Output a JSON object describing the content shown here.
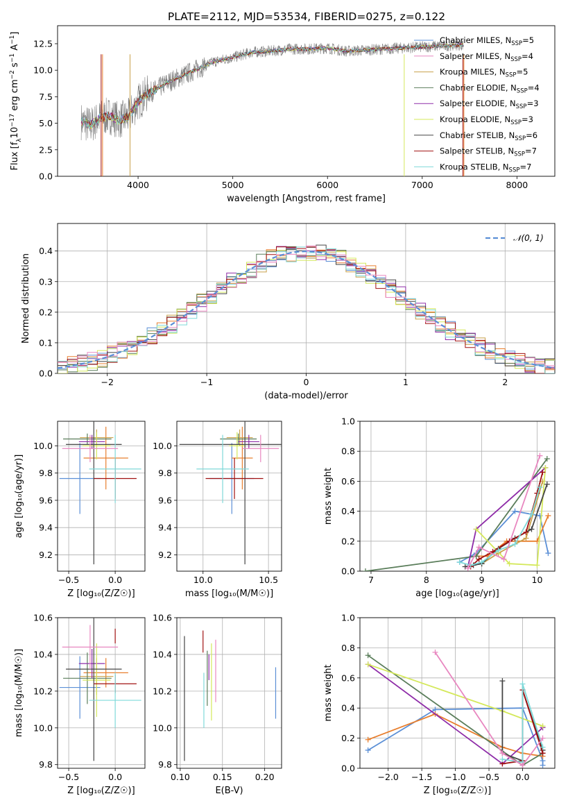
{
  "figure": {
    "title": "PLATE=2112, MJD=53534, FIBERID=0275, z=0.122"
  },
  "palette": {
    "Chabrier MILES": "#5b8fd6",
    "Salpeter MILES": "#e87f2e",
    "Kroupa MILES": "#c8a04a",
    "Chabrier ELODIE": "#5a7d5a",
    "Salpeter ELODIE": "#8e2ca8",
    "Kroupa ELODIE": "#d4e85a",
    "Chabrier STELIB": "#444444",
    "Salpeter STELIB": "#a01010",
    "Kroupa STELIB": "#7fd9d9",
    "Salpeter MILES line": "#e887c0",
    "data": "#808080",
    "normal": "#5b8fd6",
    "grid": "#b0b0b0"
  },
  "chart_data": [
    {
      "id": "spectrum",
      "type": "line",
      "xlabel": "wavelength [Angstrom, rest frame]",
      "ylabel": "Flux [f_λ10^{-17} erg cm^{-2} s^{-1} A^{-1}]",
      "xlim": [
        3150,
        8400
      ],
      "ylim": [
        0,
        14.2
      ],
      "xticks": [
        4000,
        5000,
        6000,
        7000,
        8000
      ],
      "yticks": [
        0.0,
        2.5,
        5.0,
        7.5,
        10.0,
        12.5
      ],
      "grid": false,
      "legend_position": "top-right",
      "continuum": {
        "x": [
          3400,
          3500,
          3600,
          3700,
          3800,
          3900,
          4000,
          4100,
          4200,
          4300,
          4400,
          4600,
          4800,
          5000,
          5200,
          5400,
          5600,
          5800,
          6000,
          6200,
          6400,
          6600,
          6800,
          7000,
          7200,
          7400
        ],
        "y": [
          5.2,
          4.8,
          5.5,
          5.7,
          5.3,
          5.6,
          7.0,
          7.8,
          8.2,
          8.8,
          9.2,
          10.0,
          10.8,
          11.2,
          11.7,
          11.8,
          12.0,
          12.0,
          12.1,
          11.8,
          11.9,
          12.0,
          12.1,
          12.2,
          12.3,
          12.4
        ]
      },
      "data_xrange": [
        3400,
        7440
      ],
      "legend": [
        {
          "label": "Chabrier MILES, N",
          "sub": "SSP",
          "value": "=5",
          "color": "#5b8fd6"
        },
        {
          "label": "Salpeter MILES, N",
          "sub": "SSP",
          "value": "=4",
          "color": "#e887c0"
        },
        {
          "label": "Kroupa MILES, N",
          "sub": "SSP",
          "value": "=5",
          "color": "#c8a04a"
        },
        {
          "label": "Chabrier ELODIE, N",
          "sub": "SSP",
          "value": "=4",
          "color": "#5a7d5a"
        },
        {
          "label": "Salpeter ELODIE, N",
          "sub": "SSP",
          "value": "=3",
          "color": "#8e2ca8"
        },
        {
          "label": "Kroupa ELODIE, N",
          "sub": "SSP",
          "value": "=3",
          "color": "#d4e85a"
        },
        {
          "label": "Chabrier STELIB, N",
          "sub": "SSP",
          "value": "=6",
          "color": "#444444"
        },
        {
          "label": "Salpeter STELIB, N",
          "sub": "SSP",
          "value": "=7",
          "color": "#a01010"
        },
        {
          "label": "Kroupa STELIB, N",
          "sub": "SSP",
          "value": "=7",
          "color": "#7fd9d9"
        }
      ]
    },
    {
      "id": "residuals",
      "type": "area",
      "xlabel": "(data-model)/error",
      "ylabel": "Normed distribution",
      "xlim": [
        -2.5,
        2.5
      ],
      "ylim": [
        0,
        0.49
      ],
      "xticks": [
        -2,
        -1,
        0,
        1,
        2
      ],
      "yticks": [
        0.0,
        0.1,
        0.2,
        0.3,
        0.4
      ],
      "grid": true,
      "legend_position": "top-right",
      "legend_label": "𝒩(0, 1)",
      "bin_width": 0.1,
      "bin_start": -2.5
    },
    {
      "id": "age_vs_Z",
      "type": "scatter",
      "xlabel": "Z [log₁₀(Z/Z☉)]",
      "ylabel": "age  [log₁₀(age/yr)]",
      "xlim": [
        -0.62,
        0.32
      ],
      "ylim": [
        9.08,
        10.18
      ],
      "xticks": [
        -0.5,
        0.0
      ],
      "yticks": [
        9.2,
        9.4,
        9.6,
        9.8,
        10.0
      ],
      "grid": true,
      "points": [
        {
          "model": "Chabrier MILES",
          "x": -0.38,
          "xerr": 0.22,
          "y": 9.76,
          "yerr": 0.26
        },
        {
          "model": "Salpeter MILES",
          "x": -0.1,
          "xerr": 0.24,
          "y": 9.91,
          "yerr": 0.23
        },
        {
          "model": "Kroupa MILES",
          "x": -0.2,
          "xerr": 0.18,
          "y": 10.06,
          "yerr": 0.06
        },
        {
          "model": "Chabrier ELODIE",
          "x": -0.3,
          "xerr": 0.26,
          "y": 10.05,
          "yerr": 0.04
        },
        {
          "model": "Salpeter ELODIE",
          "x": -0.25,
          "xerr": 0.14,
          "y": 10.03,
          "yerr": 0.05
        },
        {
          "model": "Kroupa ELODIE",
          "x": -0.2,
          "xerr": 0.15,
          "y": 10.0,
          "yerr": 0.1
        },
        {
          "model": "Chabrier STELIB",
          "x": -0.23,
          "xerr": 0.3,
          "y": 10.01,
          "yerr": 0.88
        },
        {
          "model": "Salpeter STELIB",
          "x": 0.0,
          "xerr": 0.23,
          "y": 9.76,
          "yerr": 0.15
        },
        {
          "model": "Kroupa STELIB",
          "x": 0.0,
          "xerr": 0.28,
          "y": 9.83,
          "yerr": 0.25
        },
        {
          "model": "Salpeter MILES line",
          "x": -0.27,
          "xerr": 0.3,
          "y": 9.98,
          "yerr": 0.1
        }
      ]
    },
    {
      "id": "age_vs_mass",
      "type": "scatter",
      "xlabel": "mass [log₁₀(M/M☉)]",
      "ylabel": "",
      "xlim": [
        9.8,
        10.6
      ],
      "ylim": [
        9.08,
        10.18
      ],
      "xticks": [
        10.0,
        10.5
      ],
      "yticks": [
        9.2,
        9.4,
        9.6,
        9.8,
        10.0
      ],
      "grid": true,
      "points": [
        {
          "model": "Chabrier MILES",
          "x": 10.22,
          "xerr": 0.17,
          "y": 9.76,
          "yerr": 0.26
        },
        {
          "model": "Salpeter MILES",
          "x": 10.3,
          "xerr": 0.08,
          "y": 9.91,
          "yerr": 0.23
        },
        {
          "model": "Kroupa MILES",
          "x": 10.28,
          "xerr": 0.1,
          "y": 10.06,
          "yerr": 0.06
        },
        {
          "model": "Chabrier ELODIE",
          "x": 10.27,
          "xerr": 0.14,
          "y": 10.05,
          "yerr": 0.04
        },
        {
          "model": "Salpeter ELODIE",
          "x": 10.35,
          "xerr": 0.08,
          "y": 10.03,
          "yerr": 0.05
        },
        {
          "model": "Kroupa ELODIE",
          "x": 10.26,
          "xerr": 0.06,
          "y": 10.0,
          "yerr": 0.1
        },
        {
          "model": "Chabrier STELIB",
          "x": 10.32,
          "xerr": 0.5,
          "y": 10.01,
          "yerr": 0.88
        },
        {
          "model": "Salpeter STELIB",
          "x": 10.24,
          "xerr": 0.22,
          "y": 9.76,
          "yerr": 0.15
        },
        {
          "model": "Kroupa STELIB",
          "x": 10.15,
          "xerr": 0.2,
          "y": 9.83,
          "yerr": 0.25
        },
        {
          "model": "Salpeter MILES line",
          "x": 10.44,
          "xerr": 0.14,
          "y": 9.98,
          "yerr": 0.1
        }
      ]
    },
    {
      "id": "mw_vs_age",
      "type": "line",
      "xlabel": "age  [log₁₀(age/yr)]",
      "ylabel": "mass weight",
      "xlim": [
        6.8,
        10.32
      ],
      "ylim": [
        0,
        1.0
      ],
      "xticks": [
        7,
        8,
        9,
        10
      ],
      "yticks": [
        0.0,
        0.2,
        0.4,
        0.6,
        0.8,
        1.0
      ],
      "grid": true,
      "series": [
        {
          "model": "Chabrier MILES",
          "x": [
            8.6,
            8.9,
            9.6,
            10.05,
            10.2
          ],
          "y": [
            0.06,
            0.12,
            0.4,
            0.37,
            0.12
          ]
        },
        {
          "model": "Salpeter MILES",
          "x": [
            8.9,
            9.1,
            9.45,
            10.0,
            10.2
          ],
          "y": [
            0.1,
            0.1,
            0.2,
            0.2,
            0.37
          ]
        },
        {
          "model": "Kroupa MILES",
          "x": [
            8.8,
            9.0,
            9.3,
            9.8,
            10.1
          ],
          "y": [
            0.04,
            0.05,
            0.12,
            0.22,
            0.6
          ]
        },
        {
          "model": "Chabrier ELODIE",
          "x": [
            6.9,
            8.9,
            10.18
          ],
          "y": [
            0.0,
            0.1,
            0.75
          ]
        },
        {
          "model": "Salpeter ELODIE",
          "x": [
            8.75,
            8.9,
            10.15
          ],
          "y": [
            0.03,
            0.28,
            0.69
          ]
        },
        {
          "model": "Kroupa ELODIE",
          "x": [
            8.9,
            9.5,
            10.0,
            10.15
          ],
          "y": [
            0.28,
            0.05,
            0.04,
            0.69
          ]
        },
        {
          "model": "Chabrier STELIB",
          "x": [
            8.7,
            8.85,
            9.0,
            9.3,
            9.6,
            9.9,
            10.18
          ],
          "y": [
            0.03,
            0.04,
            0.05,
            0.15,
            0.22,
            0.28,
            0.58
          ]
        },
        {
          "model": "Salpeter STELIB",
          "x": [
            8.8,
            8.95,
            9.2,
            9.5,
            9.8,
            10.0,
            10.1
          ],
          "y": [
            0.03,
            0.08,
            0.13,
            0.2,
            0.26,
            0.52,
            0.66
          ]
        },
        {
          "model": "Kroupa STELIB",
          "x": [
            8.6,
            8.8,
            9.0,
            9.3,
            9.6,
            9.9,
            10.05
          ],
          "y": [
            0.06,
            0.04,
            0.06,
            0.14,
            0.18,
            0.38,
            0.56
          ]
        },
        {
          "model": "Salpeter MILES line",
          "x": [
            8.75,
            8.95,
            9.4,
            10.05
          ],
          "y": [
            0.02,
            0.16,
            0.08,
            0.77
          ]
        }
      ]
    },
    {
      "id": "mass_vs_Z",
      "type": "scatter",
      "xlabel": "Z [log₁₀(Z/Z☉)]",
      "ylabel": "mass [log₁₀(M/M☉)]",
      "xlim": [
        -0.62,
        0.32
      ],
      "ylim": [
        9.78,
        10.6
      ],
      "xticks": [
        -0.5,
        0.0
      ],
      "yticks": [
        9.8,
        10.0,
        10.2,
        10.4,
        10.6
      ],
      "grid": true,
      "points": [
        {
          "model": "Chabrier MILES",
          "x": -0.38,
          "xerr": 0.22,
          "y": 10.22,
          "yerr": 0.17
        },
        {
          "model": "Salpeter MILES",
          "x": -0.1,
          "xerr": 0.24,
          "y": 10.3,
          "yerr": 0.08
        },
        {
          "model": "Kroupa MILES",
          "x": -0.2,
          "xerr": 0.18,
          "y": 10.28,
          "yerr": 0.1
        },
        {
          "model": "Chabrier ELODIE",
          "x": -0.3,
          "xerr": 0.26,
          "y": 10.27,
          "yerr": 0.14
        },
        {
          "model": "Salpeter ELODIE",
          "x": -0.25,
          "xerr": 0.14,
          "y": 10.35,
          "yerr": 0.08
        },
        {
          "model": "Kroupa ELODIE",
          "x": -0.2,
          "xerr": 0.15,
          "y": 10.26,
          "yerr": 0.2
        },
        {
          "model": "Chabrier STELIB",
          "x": -0.23,
          "xerr": 0.3,
          "y": 10.32,
          "yerr": 0.5
        },
        {
          "model": "Salpeter STELIB",
          "x": 0.0,
          "xerr": 0.23,
          "y": 10.24,
          "yerr": 0.05
        },
        {
          "model": "Kroupa STELIB",
          "x": 0.0,
          "xerr": 0.28,
          "y": 10.15,
          "yerr": 0.15
        },
        {
          "model": "Salpeter MILES line",
          "x": -0.27,
          "xerr": 0.3,
          "y": 10.44,
          "yerr": 0.12
        },
        {
          "model": "Salpeter STELIB",
          "x": 0.0,
          "xerr": 0.0,
          "y": 10.5,
          "yerr": 0.04
        }
      ]
    },
    {
      "id": "mass_vs_ebv",
      "type": "scatter",
      "xlabel": "E(B-V)",
      "ylabel": "",
      "xlim": [
        0.096,
        0.22
      ],
      "ylim": [
        9.78,
        10.6
      ],
      "xticks": [
        0.1,
        0.15,
        0.2
      ],
      "yticks": [
        9.8,
        10.0,
        10.2,
        10.4,
        10.6
      ],
      "grid": true,
      "points": [
        {
          "model": "Chabrier STELIB",
          "x": 0.105,
          "y": 10.16,
          "yerr": 0.34
        },
        {
          "model": "Salpeter STELIB",
          "x": 0.127,
          "y": 10.47,
          "yerr": 0.06
        },
        {
          "model": "Kroupa STELIB",
          "x": 0.128,
          "y": 10.15,
          "yerr": 0.15
        },
        {
          "model": "Chabrier ELODIE",
          "x": 0.132,
          "y": 10.27,
          "yerr": 0.15
        },
        {
          "model": "Salpeter ELODIE",
          "x": 0.134,
          "y": 10.33,
          "yerr": 0.07
        },
        {
          "model": "Kroupa ELODIE",
          "x": 0.137,
          "y": 10.25,
          "yerr": 0.21
        },
        {
          "model": "Salpeter MILES line",
          "x": 0.142,
          "y": 10.31,
          "yerr": 0.17
        },
        {
          "model": "Chabrier MILES",
          "x": 0.213,
          "y": 10.19,
          "yerr": 0.14
        }
      ]
    },
    {
      "id": "mw_vs_Z",
      "type": "line",
      "xlabel": "Z [log₁₀(Z/Z☉)]",
      "ylabel": "mass weight",
      "xlim": [
        -2.42,
        0.48
      ],
      "ylim": [
        0,
        1.0
      ],
      "xticks": [
        -2.0,
        -1.5,
        -1.0,
        -0.5,
        0.0
      ],
      "yticks": [
        0.0,
        0.2,
        0.4,
        0.6,
        0.8,
        1.0
      ],
      "grid": true,
      "series": [
        {
          "model": "Chabrier MILES",
          "x": [
            -2.3,
            -1.3,
            0.0,
            0.3,
            0.3
          ],
          "y": [
            0.12,
            0.39,
            0.4,
            0.05,
            0.02
          ]
        },
        {
          "model": "Salpeter MILES",
          "x": [
            -2.3,
            -1.3,
            -0.3,
            0.0,
            0.3
          ],
          "y": [
            0.19,
            0.36,
            0.14,
            0.1,
            0.08
          ]
        },
        {
          "model": "Chabrier ELODIE",
          "x": [
            -2.3,
            0.0,
            0.3
          ],
          "y": [
            0.75,
            0.02,
            0.1
          ]
        },
        {
          "model": "Salpeter ELODIE",
          "x": [
            -2.3,
            -0.3,
            0.3
          ],
          "y": [
            0.69,
            0.03,
            0.27
          ]
        },
        {
          "model": "Kroupa ELODIE",
          "x": [
            -2.3,
            -0.3,
            0.3
          ],
          "y": [
            0.69,
            0.38,
            0.28
          ]
        },
        {
          "model": "Chabrier STELIB",
          "x": [
            -0.3,
            -0.3,
            0.0,
            0.0,
            0.3
          ],
          "y": [
            0.58,
            0.1,
            0.05,
            0.52,
            0.12
          ]
        },
        {
          "model": "Salpeter STELIB",
          "x": [
            -0.3,
            0.0,
            0.0,
            0.3
          ],
          "y": [
            0.03,
            0.05,
            0.52,
            0.1
          ]
        },
        {
          "model": "Kroupa STELIB",
          "x": [
            -0.3,
            0.0,
            0.0,
            0.3
          ],
          "y": [
            0.06,
            0.04,
            0.56,
            0.14
          ]
        },
        {
          "model": "Salpeter MILES line",
          "x": [
            -1.3,
            -0.3,
            0.0,
            0.3
          ],
          "y": [
            0.77,
            0.1,
            0.02,
            0.2
          ]
        }
      ]
    }
  ]
}
